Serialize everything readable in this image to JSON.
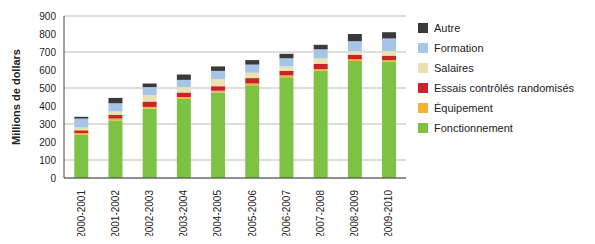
{
  "chart_data": {
    "type": "bar",
    "categories": [
      "2000-2001",
      "2001-2002",
      "2002-2003",
      "2003-2004",
      "2004-2005",
      "2005-2006",
      "2006-2007",
      "2007-2008",
      "2008-2009",
      "2009-2010"
    ],
    "series": [
      {
        "name": "Fonctionnement",
        "color": "#7dc242",
        "values": [
          240,
          320,
          385,
          440,
          475,
          515,
          560,
          595,
          650,
          645
        ]
      },
      {
        "name": "Équipement",
        "color": "#f5b335",
        "values": [
          10,
          10,
          10,
          10,
          10,
          10,
          10,
          10,
          10,
          10
        ]
      },
      {
        "name": "Essais contrôlés randomisés",
        "color": "#cc2229",
        "values": [
          15,
          20,
          30,
          25,
          25,
          30,
          25,
          30,
          25,
          25
        ]
      },
      {
        "name": "Salaires",
        "color": "#e8e3b0",
        "values": [
          15,
          20,
          35,
          30,
          40,
          30,
          25,
          30,
          20,
          25
        ]
      },
      {
        "name": "Formation",
        "color": "#a6c4e8",
        "values": [
          50,
          45,
          45,
          40,
          45,
          45,
          45,
          50,
          55,
          70
        ]
      },
      {
        "name": "Autre",
        "color": "#3a3a3a",
        "values": [
          10,
          30,
          20,
          30,
          25,
          25,
          25,
          25,
          40,
          35
        ]
      }
    ],
    "y_label": "Millions de dollars",
    "ylim": [
      0,
      900
    ],
    "yticks": [
      0,
      100,
      200,
      300,
      400,
      500,
      600,
      700,
      800,
      900
    ],
    "stacked": true,
    "grid": true,
    "legend": "right"
  }
}
